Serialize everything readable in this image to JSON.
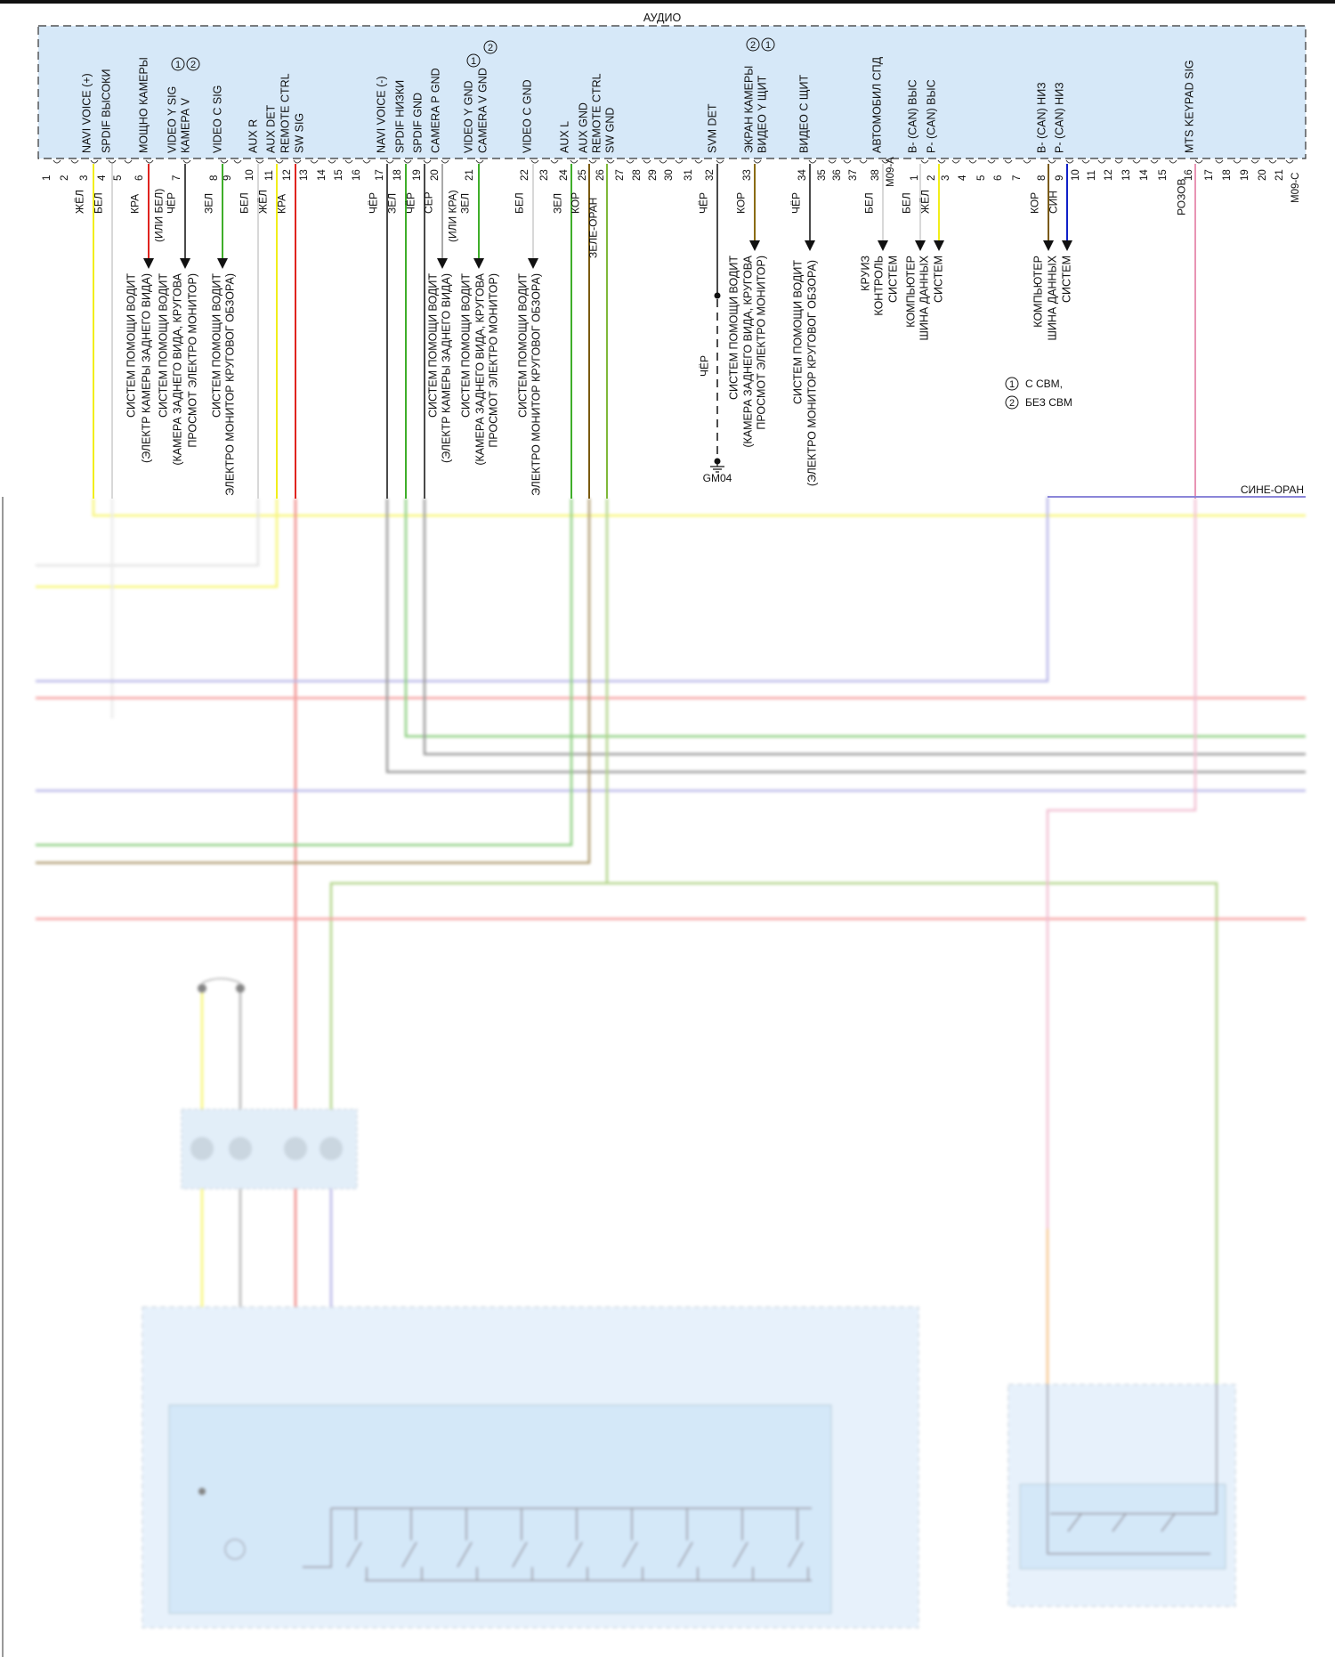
{
  "title": "АУДИО",
  "connector_a": {
    "id": "M09-A",
    "pins": [
      "1",
      "2",
      "3",
      "4",
      "5",
      "6",
      "7",
      "8",
      "9",
      "10",
      "11",
      "12",
      "13",
      "14",
      "15",
      "16",
      "17",
      "18",
      "19",
      "20",
      "21",
      "22",
      "23",
      "24",
      "25",
      "26",
      "27",
      "28",
      "29",
      "30",
      "31",
      "32",
      "33",
      "34",
      "35",
      "36",
      "37",
      "38"
    ]
  },
  "connector_c": {
    "id": "M09-C",
    "pins": [
      "1",
      "2",
      "3",
      "4",
      "5",
      "6",
      "7",
      "8",
      "9",
      "10",
      "11",
      "12",
      "13",
      "14",
      "15",
      "16",
      "17",
      "18",
      "19",
      "20",
      "21"
    ]
  },
  "signals": [
    {
      "lines": [
        "NAVI VOICE (+)"
      ]
    },
    {
      "lines": [
        "SPDIF ВЫСОКИ"
      ]
    },
    {
      "lines": [
        "МОЩНО КАМЕРЫ"
      ]
    },
    {
      "lines": [
        "VIDEO Y SIG",
        "КАМЕРА V"
      ]
    },
    {
      "lines": [
        "VIDEO C SIG"
      ]
    },
    {
      "lines": [
        "AUX R"
      ]
    },
    {
      "lines": [
        "AUX DET",
        "REMOTE CTRL",
        "SW SIG"
      ]
    },
    {
      "lines": [
        "NAVI VOICE (-)"
      ]
    },
    {
      "lines": [
        "SPDIF НИЗКИ"
      ]
    },
    {
      "lines": [
        "SPDIF GND"
      ]
    },
    {
      "lines": [
        "CAMERA P GND"
      ]
    },
    {
      "lines": [
        "VIDEO Y GND",
        "CAMERA V GND"
      ]
    },
    {
      "lines": [
        "VIDEO C GND"
      ]
    },
    {
      "lines": [
        "AUX L"
      ]
    },
    {
      "lines": [
        "AUX GND",
        "REMOTE CTRL",
        "SW GND"
      ]
    },
    {
      "lines": [
        "SVM DET"
      ]
    },
    {
      "lines": [
        "ЭКРАН КАМЕРЫ",
        "ВИДЕО Y ЩИТ"
      ]
    },
    {
      "lines": [
        "ВИДЕО С ЩИТ"
      ]
    },
    {
      "lines": [
        "АВТОМОБИЛ СПД"
      ]
    },
    {
      "lines": [
        "B- (CAN) ВЫС",
        "P- (CAN) ВЫС"
      ]
    },
    {
      "lines": [
        "B- (CAN) НИЗ",
        "P- (CAN) НИЗ"
      ]
    },
    {
      "lines": [
        "MTS KEYPAD SIG"
      ]
    }
  ],
  "option_marks": [
    "1",
    "2",
    "1",
    "2",
    "2",
    "1"
  ],
  "wires": [
    {
      "connector": "M09-A",
      "pin": "3",
      "label": "ЖЁЛ",
      "color": "#f2ee1a"
    },
    {
      "connector": "M09-A",
      "pin": "4",
      "label": "БЕЛ",
      "color": "#d8d8d8"
    },
    {
      "connector": "M09-A",
      "pin": "6",
      "label": "КРА",
      "color": "#e0241f"
    },
    {
      "connector": "M09-A",
      "pin": "7",
      "label": "ЧЁР",
      "color": "#4a4a4a",
      "alt": "(ИЛИ БЕЛ)"
    },
    {
      "connector": "M09-A",
      "pin": "8",
      "label": "ЗЕЛ",
      "color": "#3fae2a"
    },
    {
      "connector": "M09-A",
      "pin": "10",
      "label": "БЕЛ",
      "color": "#d8d8d8"
    },
    {
      "connector": "M09-A",
      "pin": "11",
      "label": "ЖЁЛ",
      "color": "#f2ee1a"
    },
    {
      "connector": "M09-A",
      "pin": "12",
      "label": "КРА",
      "color": "#e0241f"
    },
    {
      "connector": "M09-A",
      "pin": "17",
      "label": "ЧЁР",
      "color": "#4a4a4a"
    },
    {
      "connector": "M09-A",
      "pin": "18",
      "label": "ЗЕЛ",
      "color": "#3fae2a"
    },
    {
      "connector": "M09-A",
      "pin": "19",
      "label": "ЧЁР",
      "color": "#4a4a4a"
    },
    {
      "connector": "M09-A",
      "pin": "20",
      "label": "СЕР",
      "color": "#a9a9a9"
    },
    {
      "connector": "M09-A",
      "pin": "21",
      "label": "ЗЕЛ",
      "color": "#3fae2a",
      "alt": "(ИЛИ КРА)"
    },
    {
      "connector": "M09-A",
      "pin": "22",
      "label": "БЕЛ",
      "color": "#d8d8d8"
    },
    {
      "connector": "M09-A",
      "pin": "24",
      "label": "ЗЕЛ",
      "color": "#3fae2a"
    },
    {
      "connector": "M09-A",
      "pin": "25",
      "label": "КОР",
      "color": "#7a5a10"
    },
    {
      "connector": "M09-A",
      "pin": "26",
      "label": "ЗЕЛЕ-ОРАН",
      "color": "#7fb83a"
    },
    {
      "connector": "M09-A",
      "pin": "32",
      "label": "ЧЁР",
      "color": "#4a4a4a"
    },
    {
      "connector": "M09-A",
      "pin": "33",
      "label": "КОР",
      "color": "#8a6c10"
    },
    {
      "connector": "M09-A",
      "pin": "34",
      "label": "ЧЁР",
      "color": "#4a4a4a"
    },
    {
      "connector": "M09-A",
      "pin": "38",
      "label": "БЕЛ",
      "color": "#d8d8d8"
    },
    {
      "connector": "M09-C",
      "pin": "1",
      "label": "БЕЛ",
      "color": "#d8d8d8"
    },
    {
      "connector": "M09-C",
      "pin": "2",
      "label": "ЖЁЛ",
      "color": "#f2ee1a"
    },
    {
      "connector": "M09-C",
      "pin": "8",
      "label": "КОР",
      "color": "#7a5a10"
    },
    {
      "connector": "M09-C",
      "pin": "9",
      "label": "СИН",
      "color": "#1020c8"
    },
    {
      "connector": "M09-C",
      "pin": "16",
      "label": "РОЗОВ",
      "color": "#e894b4"
    }
  ],
  "destinations": [
    {
      "lines": [
        "СИСТЕМ ПОМОЩИ ВОДИТ",
        "(ЭЛЕКТР КАМЕРЫ ЗАДНЕГО ВИДА)"
      ]
    },
    {
      "lines": [
        "СИСТЕМ ПОМОЩИ ВОДИТ",
        "(КАМЕРА ЗАДНЕГО ВИДА, КРУГОВА",
        "ПРОСМОТ ЭЛЕКТРО МОНИТОР)"
      ]
    },
    {
      "lines": [
        "СИСТЕМ ПОМОЩИ ВОДИТ",
        "ЭЛЕКТРО МОНИТОР КРУГОВОГ ОБЗОРА)"
      ]
    },
    {
      "lines": [
        "СИСТЕМ ПОМОЩИ ВОДИТ",
        "(ЭЛЕКТР КАМЕРЫ ЗАДНЕГО ВИДА)"
      ]
    },
    {
      "lines": [
        "СИСТЕМ ПОМОЩИ ВОДИТ",
        "(КАМЕРА ЗАДНЕГО ВИДА, КРУГОВА",
        "ПРОСМОТ ЭЛЕКТРО МОНИТОР)"
      ]
    },
    {
      "lines": [
        "СИСТЕМ ПОМОЩИ ВОДИТ",
        "ЭЛЕКТРО МОНИТОР КРУГОВОГ ОБЗОРА)"
      ]
    },
    {
      "lines": [
        "СИСТЕМ ПОМОЩИ ВОДИТ",
        "(КАМЕРА ЗАДНЕГО ВИДА, КРУГОВА",
        "ПРОСМОТ ЭЛЕКТРО МОНИТОР)"
      ]
    },
    {
      "lines": [
        "СИСТЕМ ПОМОЩИ ВОДИТ",
        "(ЭЛЕКТРО МОНИТОР КРУГОВОГ ОБЗОРА)"
      ]
    },
    {
      "lines": [
        "КРУИЗ",
        "КОНТРОЛЬ",
        "СИСТЕМ"
      ]
    },
    {
      "lines": [
        "КОМПЬЮТЕР",
        "ШИНА ДАННЫХ",
        "СИСТЕМ"
      ]
    },
    {
      "lines": [
        "КОМПЬЮТЕР",
        "ШИНА ДАННЫХ",
        "СИСТЕМ"
      ]
    }
  ],
  "ground": {
    "wire_label": "ЧЁР",
    "id": "GM04"
  },
  "legend": [
    {
      "mark": "1",
      "text": "С СВМ,"
    },
    {
      "mark": "2",
      "text": "БЕЗ СВМ"
    }
  ],
  "bus_label": "СИНЕ-ОРАН"
}
